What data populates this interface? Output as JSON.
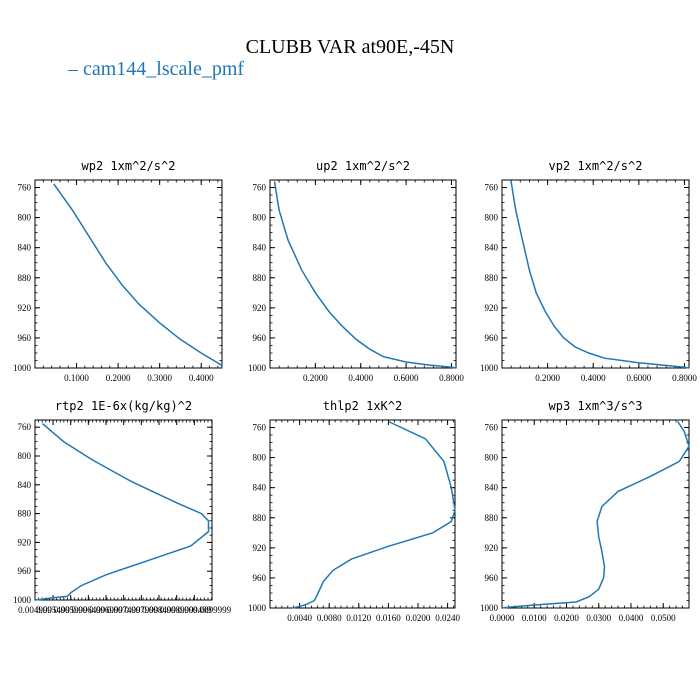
{
  "title": "CLUBB VAR at90E,-45N",
  "legend": {
    "label": "cam144_lscale_pmf",
    "color": "#1f77b4"
  },
  "chart_data": [
    {
      "type": "line",
      "title": "wp2  1xm^2/s^2",
      "xlim": [
        0.0,
        0.45
      ],
      "ylim": [
        1000,
        750
      ],
      "xticks": [
        0.1,
        0.2,
        0.3,
        0.4
      ],
      "xtick_labels": [
        "0.1000",
        "0.2000",
        "0.3000",
        "0.4000"
      ],
      "yticks": [
        760,
        800,
        840,
        880,
        920,
        960,
        1000
      ],
      "series": [
        {
          "x": [
            0.045,
            0.09,
            0.13,
            0.17,
            0.21,
            0.25,
            0.3,
            0.35,
            0.4,
            0.43,
            0.448,
            0.45
          ],
          "y": [
            755,
            790,
            825,
            860,
            890,
            915,
            940,
            962,
            980,
            990,
            996,
            1000
          ]
        }
      ]
    },
    {
      "type": "line",
      "title": "up2  1xm^2/s^2",
      "xlim": [
        0.0,
        0.82
      ],
      "ylim": [
        1000,
        750
      ],
      "xticks": [
        0.2,
        0.4,
        0.6,
        0.8
      ],
      "xtick_labels": [
        "0.2000",
        "0.4000",
        "0.6000",
        "0.8000"
      ],
      "yticks": [
        760,
        800,
        840,
        880,
        920,
        960,
        1000
      ],
      "series": [
        {
          "x": [
            0.02,
            0.04,
            0.08,
            0.14,
            0.2,
            0.26,
            0.32,
            0.38,
            0.44,
            0.5,
            0.6,
            0.7,
            0.8,
            0.82
          ],
          "y": [
            752,
            790,
            830,
            870,
            900,
            925,
            945,
            962,
            975,
            985,
            992,
            996,
            999,
            1000
          ]
        }
      ]
    },
    {
      "type": "line",
      "title": "vp2  1xm^2/s^2",
      "xlim": [
        0.0,
        0.82
      ],
      "ylim": [
        1000,
        750
      ],
      "xticks": [
        0.2,
        0.4,
        0.6,
        0.8
      ],
      "xtick_labels": [
        "0.2000",
        "0.4000",
        "0.6000",
        "0.8000"
      ],
      "yticks": [
        760,
        800,
        840,
        880,
        920,
        960,
        1000
      ],
      "series": [
        {
          "x": [
            0.04,
            0.06,
            0.09,
            0.12,
            0.15,
            0.19,
            0.23,
            0.27,
            0.32,
            0.38,
            0.45,
            0.6,
            0.8,
            0.82
          ],
          "y": [
            752,
            790,
            830,
            870,
            900,
            925,
            945,
            960,
            972,
            980,
            987,
            993,
            999,
            1000
          ]
        }
      ]
    },
    {
      "type": "line",
      "title": "rtp2  1E-6x(kg/kg)^2",
      "xlim": [
        0.00499,
        0.0099999
      ],
      "ylim": [
        1000,
        750
      ],
      "xticks": [
        0.00499,
        0.0055,
        0.006,
        0.0065,
        0.007,
        0.0075,
        0.008,
        0.0085,
        0.009,
        0.0095,
        0.0099999
      ],
      "xtick_labels": [
        "0.004999",
        "0.005499",
        "0.005999",
        "0.006499",
        "0.006999",
        "0.007499",
        "0.007999",
        "0.008499",
        "0.008999",
        "0.009499",
        "0.0099999"
      ],
      "yticks": [
        760,
        800,
        840,
        880,
        920,
        960,
        1000
      ],
      "series": [
        {
          "x": [
            0.0052,
            0.0058,
            0.0066,
            0.0077,
            0.009,
            0.0097,
            0.0099,
            0.0099,
            0.0094,
            0.0082,
            0.007,
            0.0063,
            0.006,
            0.0059,
            0.0055,
            0.0052,
            0.005
          ],
          "y": [
            755,
            780,
            805,
            835,
            865,
            880,
            890,
            905,
            925,
            945,
            965,
            980,
            990,
            995,
            997,
            999,
            1000
          ]
        }
      ]
    },
    {
      "type": "line",
      "title": "thlp2  1xK^2",
      "xlim": [
        0.0,
        0.025
      ],
      "ylim": [
        1000,
        750
      ],
      "xticks": [
        0.004,
        0.008,
        0.012,
        0.016,
        0.02,
        0.024
      ],
      "xtick_labels": [
        "0.0040",
        "0.0080",
        "0.0120",
        "0.0160",
        "0.0200",
        "0.0240"
      ],
      "yticks": [
        760,
        800,
        840,
        880,
        920,
        960,
        1000
      ],
      "series": [
        {
          "x": [
            0.016,
            0.021,
            0.0235,
            0.0245,
            0.025,
            0.0245,
            0.022,
            0.016,
            0.011,
            0.0085,
            0.0072,
            0.0065,
            0.006,
            0.005,
            0.004,
            0.003
          ],
          "y": [
            752,
            775,
            805,
            840,
            870,
            885,
            900,
            918,
            935,
            950,
            965,
            980,
            990,
            995,
            998,
            1000
          ]
        }
      ]
    },
    {
      "type": "line",
      "title": "wp3  1xm^3/s^3",
      "xlim": [
        0.0,
        0.058
      ],
      "ylim": [
        1000,
        750
      ],
      "xticks": [
        0.0,
        0.01,
        0.02,
        0.03,
        0.04,
        0.05
      ],
      "xtick_labels": [
        "0.0000",
        "0.0100",
        "0.0200",
        "0.0300",
        "0.0400",
        "0.0500"
      ],
      "yticks": [
        760,
        800,
        840,
        880,
        920,
        960,
        1000
      ],
      "series": [
        {
          "x": [
            0.0545,
            0.0565,
            0.058,
            0.055,
            0.046,
            0.036,
            0.031,
            0.0295,
            0.03,
            0.031,
            0.0318,
            0.0315,
            0.03,
            0.027,
            0.023,
            0.01,
            0.002,
            0.0
          ],
          "y": [
            752,
            765,
            785,
            805,
            825,
            845,
            865,
            885,
            905,
            925,
            945,
            960,
            975,
            985,
            992,
            996,
            999,
            1000
          ]
        }
      ]
    }
  ]
}
